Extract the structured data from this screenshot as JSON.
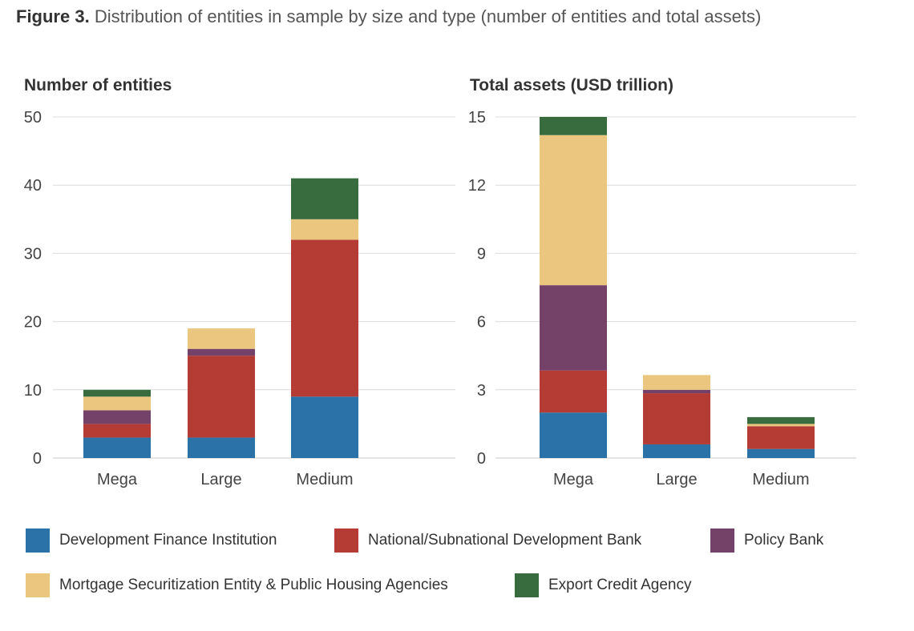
{
  "figure": {
    "label": "Figure 3.",
    "title": "Distribution of entities in sample by size and type (number of entities and total assets)"
  },
  "colors": {
    "Development Finance Institution": "#2a72a8",
    "National/Subnational Development Bank": "#b53c35",
    "Policy Bank": "#744268",
    "Mortgage Securitization Entity & Public Housing Agencies": "#ebc67f",
    "Export Credit Agency": "#386b3e"
  },
  "legend": [
    "Development Finance Institution",
    "National/Subnational Development Bank",
    "Policy Bank",
    "Mortgage Securitization Entity & Public Housing Agencies",
    "Export Credit Agency"
  ],
  "chart_data": [
    {
      "type": "bar",
      "stacked": true,
      "title": "Number of entities",
      "categories": [
        "Mega",
        "Large",
        "Medium"
      ],
      "yticks": [
        0,
        10,
        20,
        30,
        40,
        50
      ],
      "ylim": [
        0,
        50
      ],
      "grid": true,
      "series": [
        {
          "name": "Development Finance Institution",
          "values": [
            3,
            3,
            9
          ]
        },
        {
          "name": "National/Subnational Development Bank",
          "values": [
            2,
            12,
            23
          ]
        },
        {
          "name": "Policy Bank",
          "values": [
            2,
            1,
            0
          ]
        },
        {
          "name": "Mortgage Securitization Entity & Public Housing Agencies",
          "values": [
            2,
            3,
            3
          ]
        },
        {
          "name": "Export Credit Agency",
          "values": [
            1,
            0,
            6
          ]
        }
      ]
    },
    {
      "type": "bar",
      "stacked": true,
      "title": "Total assets (USD trillion)",
      "categories": [
        "Mega",
        "Large",
        "Medium"
      ],
      "yticks": [
        0,
        3,
        6,
        9,
        12,
        15
      ],
      "ylim": [
        0,
        15
      ],
      "grid": true,
      "series": [
        {
          "name": "Development Finance Institution",
          "values": [
            2.0,
            0.6,
            0.4
          ]
        },
        {
          "name": "National/Subnational Development Bank",
          "values": [
            1.85,
            2.25,
            1.0
          ]
        },
        {
          "name": "Policy Bank",
          "values": [
            3.75,
            0.15,
            0.0
          ]
        },
        {
          "name": "Mortgage Securitization Entity & Public Housing Agencies",
          "values": [
            6.6,
            0.65,
            0.1
          ]
        },
        {
          "name": "Export Credit Agency",
          "values": [
            0.8,
            0.0,
            0.3
          ]
        }
      ]
    }
  ]
}
